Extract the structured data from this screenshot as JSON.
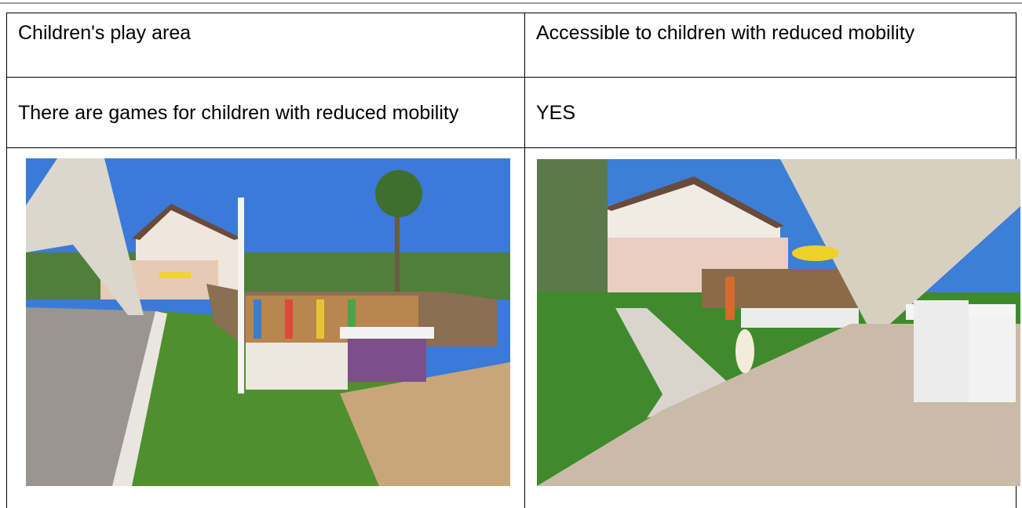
{
  "table": {
    "rows": [
      [
        "Children's play area",
        "Accessible to children with reduced mobility"
      ],
      [
        "There are games for children with reduced mobility",
        "YES"
      ]
    ]
  }
}
